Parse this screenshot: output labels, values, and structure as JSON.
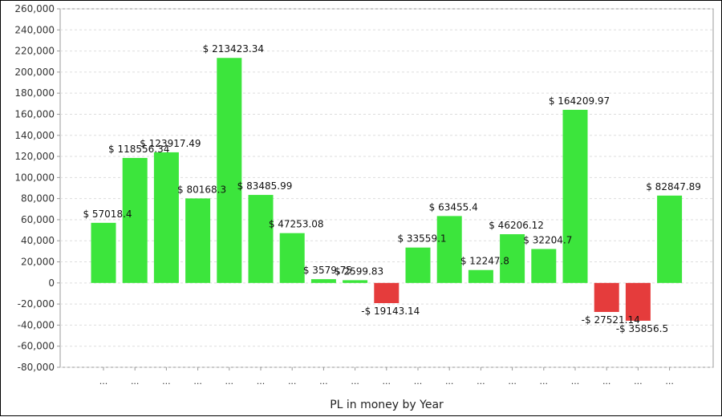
{
  "chart_data": {
    "type": "bar",
    "title": "",
    "xlabel": "PL in money by Year",
    "ylabel": "",
    "ylim": [
      -80000,
      260000
    ],
    "yticks": [
      260000,
      240000,
      220000,
      200000,
      180000,
      160000,
      140000,
      120000,
      100000,
      80000,
      60000,
      40000,
      20000,
      0,
      -20000,
      -40000,
      -60000,
      -80000
    ],
    "ytick_labels": [
      "260,000",
      "240,000",
      "220,000",
      "200,000",
      "180,000",
      "160,000",
      "140,000",
      "120,000",
      "100,000",
      "80,000",
      "60,000",
      "40,000",
      "20,000",
      "0",
      "-20,000",
      "-40,000",
      "-60,000",
      "-80,000"
    ],
    "grid": true,
    "legend": "none",
    "categories": [
      "...",
      "...",
      "...",
      "...",
      "...",
      "...",
      "...",
      "...",
      "...",
      "...",
      "...",
      "...",
      "...",
      "...",
      "...",
      "...",
      "...",
      "...",
      "..."
    ],
    "values": [
      57018.4,
      118556.34,
      123917.49,
      80168.3,
      213423.34,
      83485.99,
      47253.08,
      3579.75,
      2599.83,
      -19143.14,
      33559.1,
      63455.4,
      12247.8,
      46206.12,
      32204.7,
      164209.97,
      -27521.14,
      -35856.5,
      82847.89
    ],
    "value_labels": [
      "$ 57018.4",
      "$ 118556.34",
      "$ 123917.49",
      "$ 80168.3",
      "$ 213423.34",
      "$ 83485.99",
      "$ 47253.08",
      "$ 3579.75",
      "$ 2599.83",
      "-$ 19143.14",
      "$ 33559.1",
      "$ 63455.4",
      "$ 12247.8",
      "$ 46206.12",
      "$ 32204.7",
      "$ 164209.97",
      "-$ 27521.14",
      "-$ 35856.5",
      "$ 82847.89"
    ],
    "colors": {
      "positive": "#3ce53c",
      "negative": "#e53c3c",
      "grid": "#dddddd",
      "axis": "#999999"
    }
  }
}
